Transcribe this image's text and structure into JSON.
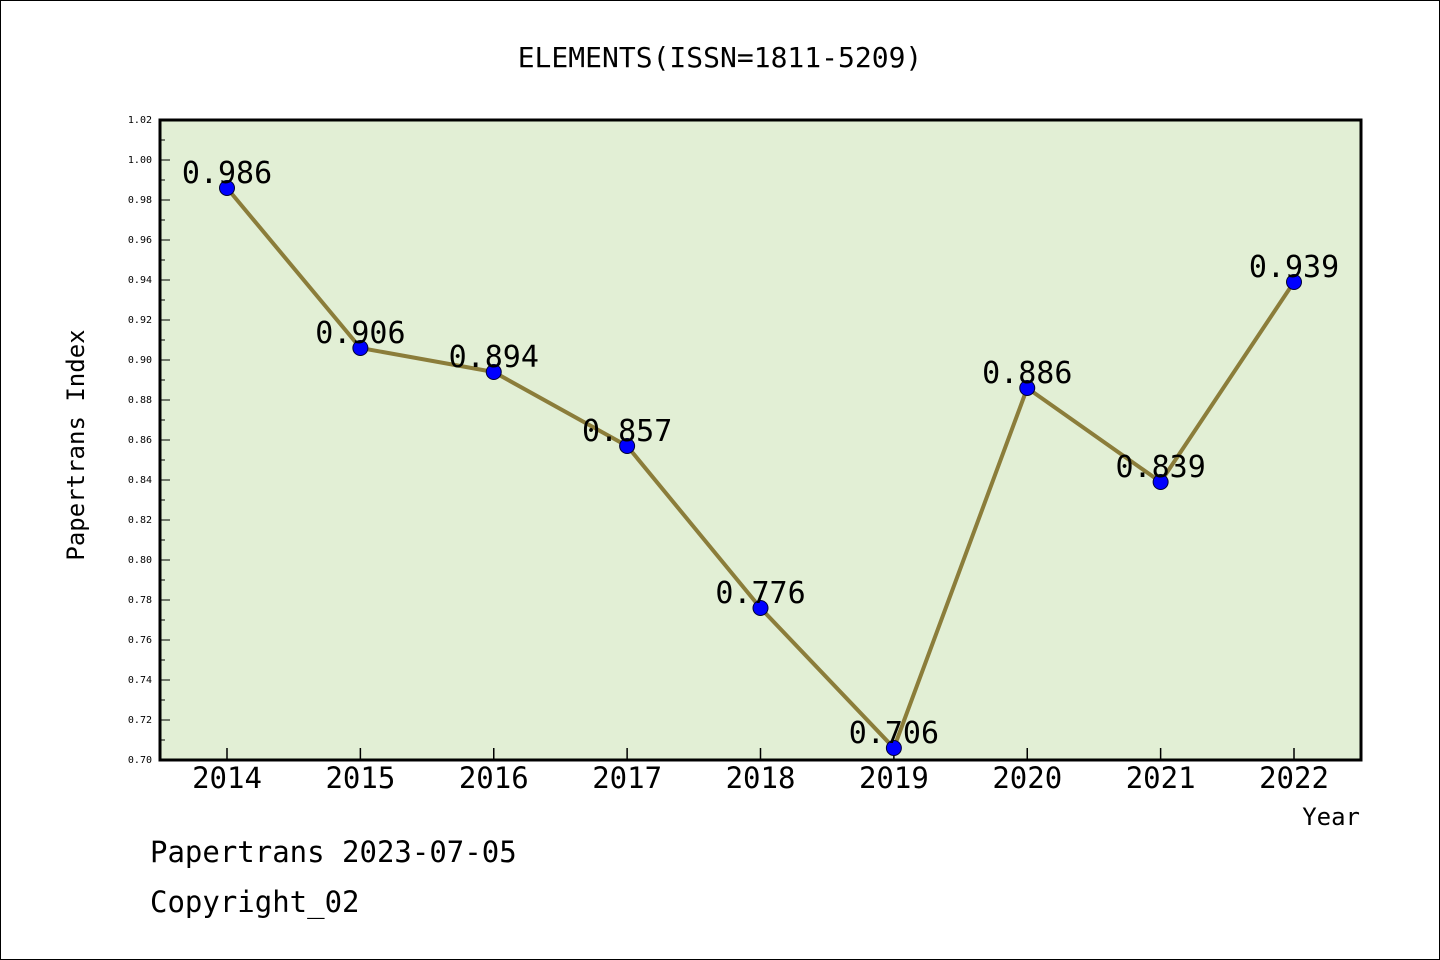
{
  "chart_data": {
    "type": "line",
    "title": "ELEMENTS(ISSN=1811-5209)",
    "xlabel": "Year",
    "ylabel": "Papertrans Index",
    "categories": [
      "2014",
      "2015",
      "2016",
      "2017",
      "2018",
      "2019",
      "2020",
      "2021",
      "2022"
    ],
    "series": [
      {
        "values": [
          0.986,
          0.906,
          0.894,
          0.857,
          0.776,
          0.706,
          0.886,
          0.839,
          0.939
        ],
        "labels": [
          "0.986",
          "0.906",
          "0.894",
          "0.857",
          "0.776",
          "0.706",
          "0.886",
          "0.839",
          "0.939"
        ]
      }
    ],
    "ylim": [
      0.7,
      1.02
    ],
    "yticks": [
      "0.70",
      "0.72",
      "0.74",
      "0.76",
      "0.78",
      "0.80",
      "0.82",
      "0.84",
      "0.86",
      "0.88",
      "0.90",
      "0.92",
      "0.94",
      "0.96",
      "0.98",
      "1.00",
      "1.02"
    ],
    "grid": false,
    "colors": {
      "plot_background": "#e2efd5",
      "line": "#8b7d3a",
      "marker": "#0000ff"
    }
  },
  "footer": {
    "line1": "Papertrans 2023-07-05",
    "line2": "Copyright_02"
  }
}
